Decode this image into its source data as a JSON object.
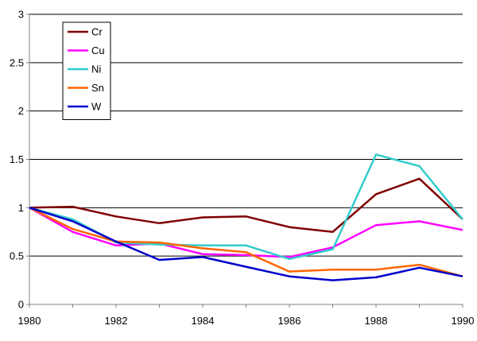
{
  "chart_data": {
    "type": "line",
    "title": "",
    "xlabel": "",
    "ylabel": "",
    "x": [
      1980,
      1981,
      1982,
      1983,
      1984,
      1985,
      1986,
      1987,
      1988,
      1989,
      1990
    ],
    "xlim": [
      1980,
      1990
    ],
    "ylim": [
      0,
      3
    ],
    "x_ticks": [
      1980,
      1982,
      1984,
      1986,
      1988,
      1990
    ],
    "y_ticks": [
      0,
      0.5,
      1,
      1.5,
      2,
      2.5,
      3
    ],
    "x_tick_labels": [
      "1980",
      "1982",
      "1984",
      "1986",
      "1988",
      "1990"
    ],
    "y_tick_labels": [
      "0",
      "0.5",
      "1",
      "1.5",
      "2",
      "2.5",
      "3"
    ],
    "grid": "horizontal",
    "legend_position": "top-left",
    "series": [
      {
        "name": "Cr",
        "color": "#800000",
        "values": [
          1.0,
          1.01,
          0.91,
          0.84,
          0.9,
          0.91,
          0.8,
          0.75,
          1.14,
          1.3,
          0.88
        ]
      },
      {
        "name": "Cu",
        "color": "#ff00ff",
        "values": [
          1.0,
          0.75,
          0.61,
          0.63,
          0.52,
          0.51,
          0.49,
          0.59,
          0.82,
          0.86,
          0.77
        ]
      },
      {
        "name": "Ni",
        "color": "#33cccc",
        "values": [
          1.0,
          0.88,
          0.64,
          0.62,
          0.61,
          0.61,
          0.47,
          0.57,
          1.55,
          1.43,
          0.88
        ]
      },
      {
        "name": "Sn",
        "color": "#ff6600",
        "values": [
          1.0,
          0.78,
          0.65,
          0.64,
          0.58,
          0.54,
          0.34,
          0.36,
          0.36,
          0.41,
          0.29
        ]
      },
      {
        "name": "W",
        "color": "#0000cc",
        "values": [
          1.0,
          0.86,
          0.65,
          0.46,
          0.49,
          0.39,
          0.29,
          0.25,
          0.28,
          0.38,
          0.29
        ]
      }
    ]
  }
}
